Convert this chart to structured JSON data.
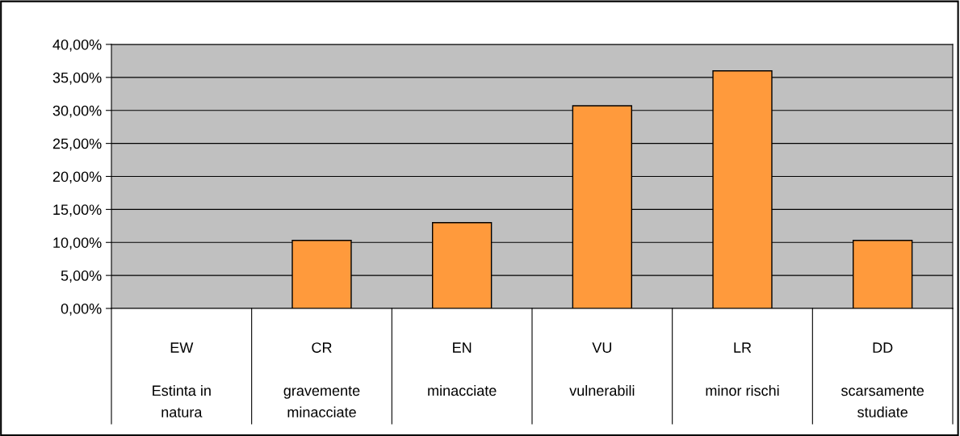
{
  "chart_data": {
    "type": "bar",
    "categories": [
      "EW\n\nEstinta in\nnatura",
      "CR\n\ngravemente\nminacciate",
      "EN\n\nminacciate",
      "VU\n\nvulnerabili",
      "LR\n\nminor rischi",
      "DD\n\nscarsamente\nstudiate"
    ],
    "values": [
      0,
      0.103,
      0.13,
      0.307,
      0.36,
      0.103
    ],
    "color": "#ff9a3c",
    "ylim": [
      0,
      0.4
    ],
    "yticks": [
      {
        "value": 0,
        "label": "0,00%"
      },
      {
        "value": 0.05,
        "label": "5,00%"
      },
      {
        "value": 0.1,
        "label": "10,00%"
      },
      {
        "value": 0.15,
        "label": "15,00%"
      },
      {
        "value": 0.2,
        "label": "20,00%"
      },
      {
        "value": 0.25,
        "label": "25,00%"
      },
      {
        "value": 0.3,
        "label": "30,00%"
      },
      {
        "value": 0.35,
        "label": "35,00%"
      },
      {
        "value": 0.4,
        "label": "40,00%"
      }
    ],
    "grid": "y"
  }
}
